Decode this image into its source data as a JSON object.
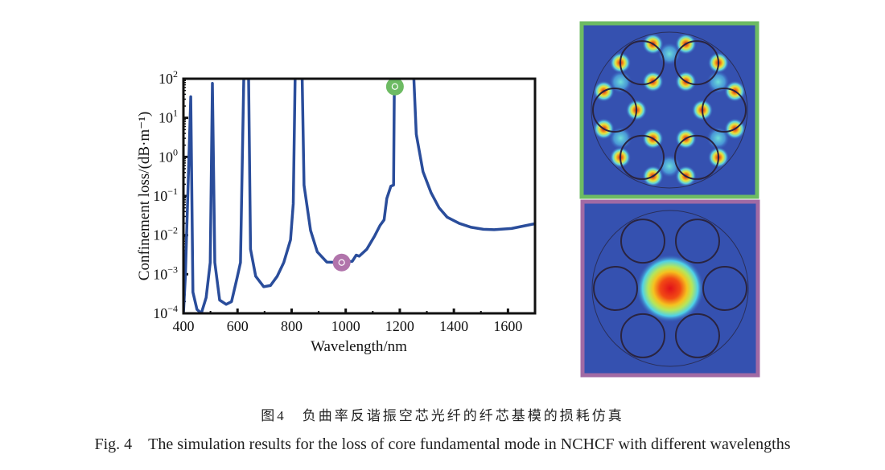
{
  "chart_data": {
    "type": "line",
    "xlabel": "Wavelength/nm",
    "ylabel": "Confinement loss/(dB·m⁻¹)",
    "xlim": [
      400,
      1700
    ],
    "ylim": [
      0.0001,
      100
    ],
    "yscale": "log",
    "x_ticks": [
      "400",
      "600",
      "800",
      "1000",
      "1200",
      "1400",
      "1600"
    ],
    "x_tick_values": [
      400,
      600,
      800,
      1000,
      1200,
      1400,
      1600
    ],
    "y_ticks": [
      {
        "base": "10",
        "exp": "2",
        "log": 2
      },
      {
        "base": "10",
        "exp": "1",
        "log": 1
      },
      {
        "base": "10",
        "exp": "0",
        "log": 0
      },
      {
        "base": "10",
        "exp": "−1",
        "log": -1
      },
      {
        "base": "10",
        "exp": "−2",
        "log": -2
      },
      {
        "base": "10",
        "exp": "−3",
        "log": -3
      },
      {
        "base": "10",
        "exp": "−4",
        "log": -4
      }
    ],
    "series_color": "#2a4d9b",
    "series": [
      {
        "name": "segment-1",
        "log10_y": true,
        "points": [
          [
            400,
            -4
          ],
          [
            407,
            -3.05
          ],
          [
            427,
            1.54
          ],
          [
            435,
            -3.46
          ],
          [
            450,
            -3.9
          ],
          [
            466,
            -4
          ],
          [
            484,
            -3.6
          ],
          [
            499,
            -2.7
          ],
          [
            507,
            1.88
          ],
          [
            516,
            -2.7
          ],
          [
            534,
            -3.66
          ],
          [
            558,
            -3.77
          ],
          [
            578,
            -3.7
          ],
          [
            598,
            -3.1
          ],
          [
            611,
            -2.7
          ],
          [
            623,
            2
          ]
        ]
      },
      {
        "name": "segment-2",
        "log10_y": true,
        "points": [
          [
            641,
            2
          ],
          [
            648,
            -2.36
          ],
          [
            667,
            -3.05
          ],
          [
            697,
            -3.32
          ],
          [
            722,
            -3.29
          ],
          [
            747,
            -3.05
          ],
          [
            771,
            -2.7
          ],
          [
            796,
            -2.12
          ],
          [
            806,
            -1.2
          ],
          [
            813,
            2
          ]
        ]
      },
      {
        "name": "segment-3",
        "log10_y": true,
        "points": [
          [
            839,
            2
          ],
          [
            846,
            -0.72
          ],
          [
            870,
            -1.88
          ],
          [
            895,
            -2.43
          ],
          [
            930,
            -2.69
          ],
          [
            984,
            -2.7
          ],
          [
            1024,
            -2.67
          ],
          [
            1039,
            -2.51
          ],
          [
            1050,
            -2.54
          ],
          [
            1078,
            -2.36
          ],
          [
            1107,
            -2.02
          ],
          [
            1127,
            -1.75
          ],
          [
            1142,
            -1.61
          ],
          [
            1152,
            -1.06
          ],
          [
            1167,
            -0.75
          ],
          [
            1177,
            -0.72
          ],
          [
            1180,
            2
          ]
        ]
      },
      {
        "name": "segment-4",
        "log10_y": true,
        "points": [
          [
            1252,
            2
          ],
          [
            1261,
            0.58
          ],
          [
            1286,
            -0.38
          ],
          [
            1316,
            -0.92
          ],
          [
            1345,
            -1.3
          ],
          [
            1375,
            -1.54
          ],
          [
            1420,
            -1.7
          ],
          [
            1464,
            -1.8
          ],
          [
            1509,
            -1.85
          ],
          [
            1549,
            -1.86
          ],
          [
            1613,
            -1.83
          ],
          [
            1697,
            -1.71
          ]
        ]
      }
    ],
    "markers": [
      {
        "name": "higher-order-mode-point",
        "x": 1182,
        "log10_y": 1.8,
        "color": "#6dbb63"
      },
      {
        "name": "fundamental-mode-point",
        "x": 985,
        "log10_y": -2.7,
        "color": "#b174ab"
      }
    ]
  },
  "mode_panels": [
    {
      "name": "mode-field-1180nm",
      "border": "#6dbb63",
      "type": "cladding-mode"
    },
    {
      "name": "mode-field-985nm",
      "border": "#a16aa4",
      "type": "core-fundamental-mode"
    }
  ],
  "caption": {
    "cn": "图4　负曲率反谐振空芯光纤的纤芯基模的损耗仿真",
    "en": "Fig. 4　The simulation results for the loss of core fundamental mode in NCHCF with different wavelengths"
  }
}
